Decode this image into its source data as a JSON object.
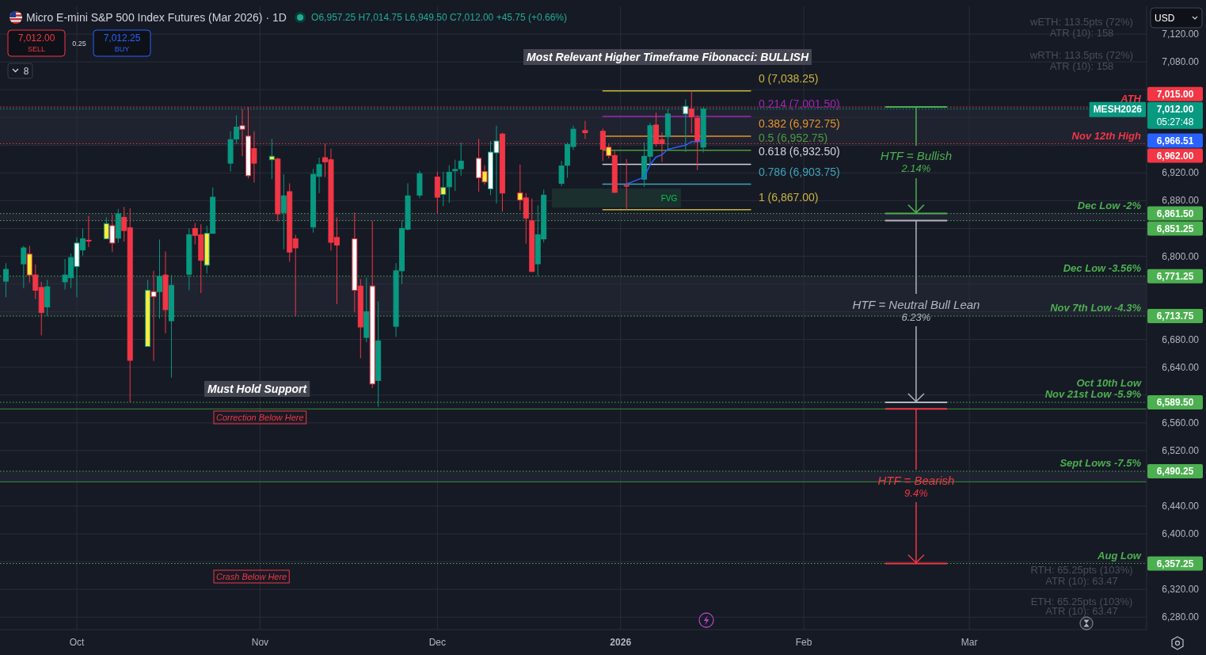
{
  "chart_data": {
    "type": "candlestick",
    "title": "Micro E-mini S&P 500 Index Futures (Mar 2026) · 1D",
    "subtitle": "O6,957.25 H7,014.75 L6,949.50 C7,012.00 +45.75 (+0.66%)",
    "xlim": [
      "2025-09-18",
      "2026-03-31"
    ],
    "xticks": [
      {
        "value": "2025-10-01",
        "label": "Oct"
      },
      {
        "value": "2025-11-01",
        "label": "Nov"
      },
      {
        "value": "2025-12-01",
        "label": "Dec"
      },
      {
        "value": "2026-01-01",
        "label": "2026"
      },
      {
        "value": "2026-02-01",
        "label": "Feb"
      },
      {
        "value": "2026-03-01",
        "label": "Mar"
      }
    ],
    "ylim": [
      6262,
      7160
    ],
    "yticks": [
      {
        "value": 6280,
        "label": "6,280.00"
      },
      {
        "value": 6320,
        "label": "6,320.00"
      },
      {
        "value": 6360,
        "label": null
      },
      {
        "value": 6400,
        "label": "6,400.00"
      },
      {
        "value": 6440,
        "label": "6,440.00"
      },
      {
        "value": 6520,
        "label": "6,520.00"
      },
      {
        "value": 6560,
        "label": "6,560.00"
      },
      {
        "value": 6600,
        "label": null
      },
      {
        "value": 6640,
        "label": "6,640.00"
      },
      {
        "value": 6680,
        "label": "6,680.00"
      },
      {
        "value": 6720,
        "label": null
      },
      {
        "value": 6760,
        "label": null
      },
      {
        "value": 6800,
        "label": "6,800.00"
      },
      {
        "value": 6840,
        "label": null
      },
      {
        "value": 6880,
        "label": "6,880.00"
      },
      {
        "value": 6920,
        "label": "6,920.00"
      },
      {
        "value": 6960,
        "label": null
      },
      {
        "value": 7000,
        "label": null
      },
      {
        "value": 7040,
        "label": null
      },
      {
        "value": 7080,
        "label": "7,080.00"
      },
      {
        "value": 7120,
        "label": "7,120.00"
      }
    ],
    "grid": true,
    "series": [
      {
        "color": "#089981",
        "x": [
          "2025-09-19",
          "2025-09-22",
          "2025-09-26",
          "2025-09-29",
          "2025-09-30",
          "2025-10-01",
          "2025-10-02",
          "2025-10-06",
          "2025-10-08",
          "2025-10-13",
          "2025-10-15",
          "2025-10-17",
          "2025-10-20",
          "2025-10-23",
          "2025-10-24",
          "2025-10-27",
          "2025-10-28",
          "2025-11-03",
          "2025-11-05",
          "2025-11-10",
          "2025-11-11",
          "2025-11-19",
          "2025-11-21",
          "2025-11-24",
          "2025-11-25",
          "2025-11-26",
          "2025-11-28",
          "2025-12-02",
          "2025-12-03",
          "2025-12-04",
          "2025-12-05",
          "2025-12-10",
          "2025-12-11",
          "2025-12-18",
          "2025-12-19",
          "2025-12-22",
          "2025-12-23",
          "2025-12-24",
          "2026-01-05",
          "2026-01-06",
          "2026-01-09",
          "2026-01-12",
          "2026-01-15"
        ],
        "ohlc": [
          [
            6764,
            6790,
            6741,
            6781
          ],
          [
            6789,
            6815,
            6754,
            6812
          ],
          [
            6727,
            6766,
            6714,
            6756
          ],
          [
            6763,
            6796,
            6752,
            6773
          ],
          [
            6769,
            6804,
            6754,
            6798
          ],
          [
            6785,
            6827,
            6741,
            6819
          ],
          [
            6809,
            6840,
            6801,
            6825
          ],
          [
            6825,
            6856,
            6825,
            6847
          ],
          [
            6826,
            6868,
            6819,
            6861
          ],
          [
            6670,
            6766,
            6670,
            6751
          ],
          [
            6749,
            6824,
            6710,
            6771
          ],
          [
            6707,
            6773,
            6625,
            6758
          ],
          [
            6774,
            6840,
            6751,
            6831
          ],
          [
            6787,
            6844,
            6775,
            6833
          ],
          [
            6833,
            6899,
            6833,
            6885
          ],
          [
            6934,
            6980,
            6922,
            6968
          ],
          [
            6969,
            7003,
            6962,
            6986
          ],
          [
            6939,
            6969,
            6911,
            6944
          ],
          [
            6863,
            6918,
            6810,
            6887
          ],
          [
            6842,
            6926,
            6834,
            6918
          ],
          [
            6915,
            6942,
            6891,
            6932
          ],
          [
            6683,
            6769,
            6676,
            6720
          ],
          [
            6621,
            6735,
            6583,
            6678
          ],
          [
            6699,
            6790,
            6684,
            6779
          ],
          [
            6779,
            6851,
            6760,
            6840
          ],
          [
            6839,
            6905,
            6837,
            6887
          ],
          [
            6888,
            6923,
            6884,
            6919
          ],
          [
            6889,
            6922,
            6872,
            6899
          ],
          [
            6900,
            6931,
            6877,
            6921
          ],
          [
            6923,
            6939,
            6894,
            6925
          ],
          [
            6926,
            6964,
            6916,
            6937
          ],
          [
            6897,
            6966,
            6888,
            6950
          ],
          [
            6949,
            6988,
            6876,
            6966
          ],
          [
            6789,
            6873,
            6771.25,
            6831
          ],
          [
            6825,
            6896,
            6820,
            6888
          ],
          [
            6905,
            6937,
            6901,
            6930
          ],
          [
            6931,
            6964,
            6913,
            6961
          ],
          [
            6958,
            6988,
            6953,
            6983
          ],
          [
            6911,
            6964,
            6900,
            6944
          ],
          [
            6944,
            6992,
            6932,
            6988
          ],
          [
            6972,
            7012,
            6954,
            7005
          ],
          [
            7005,
            7026,
            6950,
            7016
          ],
          [
            6957.25,
            7014.75,
            6949.5,
            7012
          ]
        ],
        "colors": [
          "#089981",
          "#089981",
          "#089981",
          "#089981",
          "#089981",
          "#ffffff",
          "#089981",
          "#ffeb3b",
          "#089981",
          "#ffeb3b",
          "#089981",
          "#089981",
          "#089981",
          "#ffeb3b",
          "#089981",
          "#089981",
          "#089981",
          "#ffeb3b",
          "#089981",
          "#089981",
          "#089981",
          "#089981",
          "#089981",
          "#089981",
          "#089981",
          "#089981",
          "#089981",
          "#ffeb3b",
          "#089981",
          "#089981",
          "#089981",
          "#ffffff",
          "#ffffff",
          "#089981",
          "#089981",
          "#089981",
          "#089981",
          "#089981",
          "#089981",
          "#089981",
          "#089981",
          "#ffffff",
          "#089981"
        ]
      },
      {
        "color": "#f23645",
        "x": [
          "2025-09-23",
          "2025-09-24",
          "2025-09-25",
          "2025-10-03",
          "2025-10-07",
          "2025-10-09",
          "2025-10-10",
          "2025-10-14",
          "2025-10-16",
          "2025-10-21",
          "2025-10-22",
          "2025-10-29",
          "2025-10-30",
          "2025-10-31",
          "2025-11-04",
          "2025-11-06",
          "2025-11-07",
          "2025-11-12",
          "2025-11-13",
          "2025-11-14",
          "2025-11-17",
          "2025-11-18",
          "2025-11-20",
          "2025-12-01",
          "2025-12-08",
          "2025-12-09",
          "2025-12-12",
          "2025-12-15",
          "2025-12-16",
          "2025-12-17",
          "2025-12-26",
          "2025-12-29",
          "2025-12-30",
          "2025-12-31",
          "2026-01-02",
          "2026-01-07",
          "2026-01-08",
          "2026-01-13",
          "2026-01-14"
        ],
        "ohlc": [
          [
            6803,
            6815,
            6762,
            6773
          ],
          [
            6773,
            6788,
            6738,
            6751
          ],
          [
            6755,
            6763,
            6686,
            6719
          ],
          [
            6823,
            6858,
            6813,
            6822
          ],
          [
            6844,
            6860,
            6806,
            6819
          ],
          [
            6856,
            6871,
            6821,
            6837
          ],
          [
            6841,
            6869,
            6589.5,
            6650
          ],
          [
            6749,
            6779,
            6649,
            6742
          ],
          [
            6773,
            6807,
            6689,
            6723
          ],
          [
            6840,
            6848,
            6817,
            6830
          ],
          [
            6831,
            6846,
            6747,
            6794
          ],
          [
            6988,
            7012,
            6944,
            6983
          ],
          [
            6973,
            7015,
            6912,
            6916
          ],
          [
            6955,
            6980,
            6906,
            6934
          ],
          [
            6940,
            6942,
            6850,
            6861
          ],
          [
            6893,
            6905,
            6792,
            6806
          ],
          [
            6825,
            6831,
            6713.75,
            6812
          ],
          [
            6942,
            6962,
            6914,
            6936
          ],
          [
            6939,
            6955,
            6808,
            6820
          ],
          [
            6827,
            6856,
            6731,
            6816
          ],
          [
            6825,
            6863,
            6719,
            6751
          ],
          [
            6757,
            6767,
            6653,
            6698
          ],
          [
            6757,
            6851,
            6610,
            6616
          ],
          [
            6914,
            6922,
            6861.5,
            6885
          ],
          [
            6941,
            6969,
            6893,
            6913
          ],
          [
            6922,
            6931,
            6903,
            6907
          ],
          [
            6976,
            6978,
            6864,
            6891
          ],
          [
            6891,
            6932,
            6866,
            6881
          ],
          [
            6884,
            6891,
            6818,
            6855
          ],
          [
            6851,
            6883,
            6777,
            6778
          ],
          [
            6981,
            6995,
            6969,
            6978
          ],
          [
            6980,
            6984,
            6937,
            6954
          ],
          [
            6957,
            6962,
            6941,
            6945
          ],
          [
            6945,
            6952,
            6891,
            6892
          ],
          [
            6902,
            6940,
            6867,
            6901
          ],
          [
            6989,
            7007,
            6958,
            6962
          ],
          [
            6968,
            6978,
            6936,
            6962
          ],
          [
            7012,
            7038.25,
            6977,
            7001
          ],
          [
            6999,
            7003,
            6924,
            6965
          ]
        ],
        "colors": [
          "#ffeb3b",
          "#f23645",
          "#f23645",
          "#f23645",
          "#ffffff",
          "#f23645",
          "#f23645",
          "#ffffff",
          "#f23645",
          "#f23645",
          "#f23645",
          "#ffffff",
          "#ffffff",
          "#f23645",
          "#f23645",
          "#f23645",
          "#f23645",
          "#f23645",
          "#f23645",
          "#f23645",
          "#ffffff",
          "#f23645",
          "#ffffff",
          "#f23645",
          "#ffffff",
          "#ffeb3b",
          "#f23645",
          "#ffeb3b",
          "#f23645",
          "#f23645",
          "#f23645",
          "#f23645",
          "#ffeb3b",
          "#f23645",
          "#f23645",
          "#f23645",
          "#f23645",
          "#f23645",
          "#f23645"
        ]
      },
      {
        "type": "line",
        "color": "#2962ff",
        "x": [
          "2026-01-02",
          "2026-01-05",
          "2026-01-06",
          "2026-01-07",
          "2026-01-08",
          "2026-01-09",
          "2026-01-12",
          "2026-01-13",
          "2026-01-14",
          "2026-01-15"
        ],
        "values": [
          6904,
          6914,
          6932,
          6943,
          6946,
          6954,
          6960,
          6965,
          6965,
          6966.51
        ]
      },
      {
        "type": "line",
        "name": "0 (7,038.25)",
        "color": "#c9b53d",
        "x": [
          "2025-12-29",
          "2026-01-23"
        ],
        "values": [
          7038.25,
          7038.25
        ]
      },
      {
        "type": "line",
        "name": "0.214 (7,001.50)",
        "color": "#9c27b0",
        "x": [
          "2025-12-29",
          "2026-01-23"
        ],
        "values": [
          7001.5,
          7001.5
        ]
      },
      {
        "type": "line",
        "name": "0.382 (6,972.75)",
        "color": "#e6932a",
        "x": [
          "2025-12-29",
          "2026-01-23"
        ],
        "values": [
          6972.75,
          6972.75
        ]
      },
      {
        "type": "line",
        "name": "0.5 (6,952.75)",
        "color": "#4c9a3c",
        "x": [
          "2025-12-29",
          "2026-01-23"
        ],
        "values": [
          6952.75,
          6952.75
        ]
      },
      {
        "type": "line",
        "name": "0.618 (6,932.50)",
        "color": "#d1d4dc",
        "x": [
          "2025-12-29",
          "2026-01-23"
        ],
        "values": [
          6932.5,
          6932.5
        ]
      },
      {
        "type": "line",
        "name": "0.786 (6,903.75)",
        "color": "#3fa3b8",
        "x": [
          "2025-12-29",
          "2026-01-23"
        ],
        "values": [
          6903.75,
          6903.75
        ]
      },
      {
        "type": "line",
        "name": "1 (6,867.00)",
        "color": "#c9b53d",
        "x": [
          "2025-12-29",
          "2026-01-23"
        ],
        "values": [
          6867,
          6867
        ]
      }
    ],
    "bands": [
      {
        "axis": "y",
        "from": 6962,
        "to": 7015,
        "color": "#1f2330"
      },
      {
        "axis": "y",
        "from": 6851.25,
        "to": 6861.5,
        "color": "#1f2330"
      },
      {
        "axis": "y",
        "from": 6713.75,
        "to": 6771.25,
        "color": "#1f2330"
      },
      {
        "axis": "y",
        "from": 6475,
        "to": 6490.25,
        "color": "#1f2330"
      }
    ],
    "ref_lines": [
      {
        "axis": "y",
        "value": 7015,
        "label": "ATH",
        "color": "#f23645",
        "line_style": "dotted"
      },
      {
        "axis": "y",
        "value": 7012,
        "label": "MESH2026",
        "color": "#089981",
        "line_style": "dotted"
      },
      {
        "axis": "y",
        "value": 6962,
        "label": "Nov 12th High",
        "color": "#f23645",
        "line_style": "dotted"
      },
      {
        "axis": "y",
        "value": 6861.5,
        "label": "Dec Low -2%",
        "color": "#4caf50",
        "line_style": "dotted"
      },
      {
        "axis": "y",
        "value": 6851.25,
        "color": "#4caf50",
        "line_style": "dotted"
      },
      {
        "axis": "y",
        "value": 6771.25,
        "label": "Dec Low -3.56%",
        "color": "#4caf50",
        "line_style": "dotted"
      },
      {
        "axis": "y",
        "value": 6713.75,
        "label": "Nov 7th Low -4.3%",
        "color": "#4caf50",
        "line_style": "dotted"
      },
      {
        "axis": "y",
        "value": 6589.5,
        "label": "Oct 10th Low\nNov 21st Low -5.9%",
        "color": "#4caf50",
        "line_style": "dotted"
      },
      {
        "axis": "y",
        "value": 6580,
        "color": "#388e3c",
        "line_style": "solid"
      },
      {
        "axis": "y",
        "value": 6490.25,
        "label": "Sept Lows -7.5%",
        "color": "#4caf50",
        "line_style": "dotted"
      },
      {
        "axis": "y",
        "value": 6475,
        "color": "#388e3c",
        "line_style": "solid"
      },
      {
        "axis": "y",
        "value": 6357.25,
        "label": "Aug Low",
        "color": "#4caf50",
        "line_style": "dotted"
      }
    ],
    "annotations": [
      "Most Relevant Higher Timeframe Fibonacci: BULLISH",
      "FVG",
      {
        "text": "HTF = Bullish\n2.14%",
        "x": "2026-02-20",
        "y": 6861.5
      },
      {
        "text": "HTF = Neutral Bull Lean\n6.23%",
        "x": "2026-02-20",
        "y": 6589.5
      },
      {
        "text": "HTF = Bearish\n9.4%",
        "x": "2026-02-20",
        "y": 6357.25
      },
      "Must Hold Support",
      "Correction Below Here",
      "Crash Below Here",
      "wETH: 113.5pts (72%)",
      "ATR (10): 158",
      "wRTH: 113.5pts (72%)",
      "ATR (10): 158",
      "RTH: 65.25pts (103%)",
      "ATR (10): 63.47",
      "ETH: 65.25pts (103%)",
      "ATR (10): 63.47",
      "7,012.00",
      "SELL",
      "0.25",
      "7,012.25",
      "BUY",
      "8",
      "USD",
      "6,966.51",
      {
        "text": "7,015.00",
        "x": "2026-03-31",
        "y": 7015
      },
      {
        "text": "7,012.00",
        "x": "2026-03-31",
        "y": 7012
      },
      {
        "text": "05:27:48",
        "x": "2026-03-31",
        "y": 7012
      },
      {
        "text": "6,962.00",
        "x": "2026-03-31",
        "y": 6962
      },
      {
        "text": "6,861.50",
        "x": "2026-03-31",
        "y": 6861.5
      },
      {
        "text": "6,851.25",
        "x": "2026-03-31",
        "y": 6851.25
      },
      {
        "text": "6,771.25",
        "x": "2026-03-31",
        "y": 6771.25
      },
      {
        "text": "6,713.75",
        "x": "2026-03-31",
        "y": 6713.75
      },
      {
        "text": "6,589.50",
        "x": "2026-03-31",
        "y": 6589.5
      },
      {
        "text": "6,490.25",
        "x": "2026-03-31",
        "y": 6490.25
      },
      {
        "text": "6,357.25",
        "x": "2026-03-31",
        "y": 6357.25
      }
    ]
  }
}
